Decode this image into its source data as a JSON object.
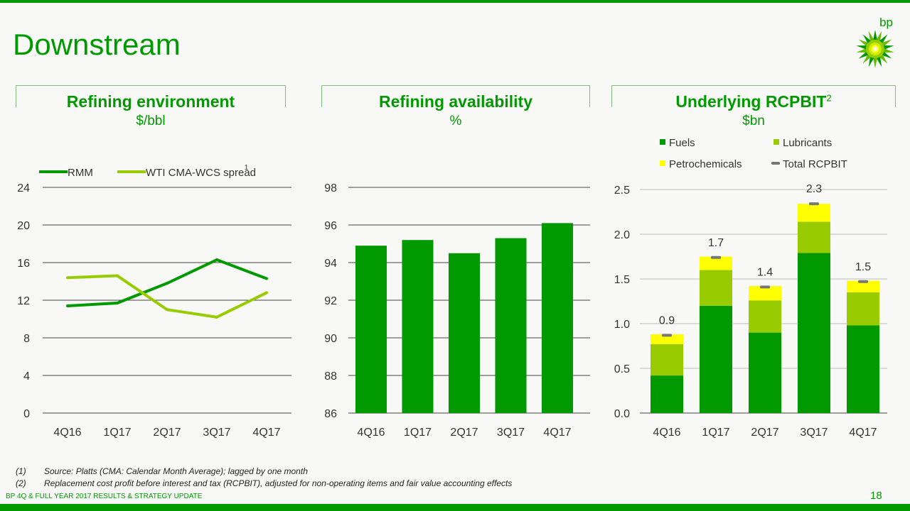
{
  "slide": {
    "title": "Downstream",
    "logo_text": "bp",
    "brand_footer": "BP 4Q & FULL YEAR 2017 RESULTS & STRATEGY UPDATE",
    "page_number": "18",
    "footnotes": [
      {
        "num": "(1)",
        "text": "Source: Platts (CMA: Calendar Month Average); lagged by one month"
      },
      {
        "num": "(2)",
        "text": "Replacement cost profit before interest and tax (RCPBIT), adjusted for non-operating items and fair value accounting effects"
      }
    ],
    "colors": {
      "green_dark": "#009900",
      "green_light": "#99cc00",
      "yellow": "#ffff00",
      "grey": "#777777"
    }
  },
  "chart_data": [
    {
      "type": "line",
      "title": "Refining environment",
      "unit": "$/bbl",
      "categories": [
        "4Q16",
        "1Q17",
        "2Q17",
        "3Q17",
        "4Q17"
      ],
      "series": [
        {
          "name": "RMM",
          "superscript": "",
          "values": [
            11.4,
            11.7,
            13.8,
            16.3,
            14.3
          ]
        },
        {
          "name": "WTI CMA-WCS spread",
          "superscript": "1",
          "values": [
            14.4,
            14.6,
            11.0,
            10.2,
            12.8
          ]
        }
      ],
      "ylim": [
        0,
        24
      ],
      "yticks": [
        0,
        4,
        8,
        12,
        16,
        20,
        24
      ],
      "legend": "top-left"
    },
    {
      "type": "bar",
      "title": "Refining availability",
      "unit": "%",
      "categories": [
        "4Q16",
        "1Q17",
        "2Q17",
        "3Q17",
        "4Q17"
      ],
      "values": [
        94.9,
        95.2,
        94.5,
        95.3,
        96.1
      ],
      "ylim": [
        86,
        98
      ],
      "yticks": [
        86,
        88,
        90,
        92,
        94,
        96,
        98
      ]
    },
    {
      "type": "bar",
      "stacked": true,
      "title": "Underlying RCPBIT",
      "title_superscript": "2",
      "unit": "$bn",
      "categories": [
        "4Q16",
        "1Q17",
        "2Q17",
        "3Q17",
        "4Q17"
      ],
      "series": [
        {
          "name": "Fuels",
          "values": [
            0.42,
            1.2,
            0.9,
            1.79,
            0.98
          ]
        },
        {
          "name": "Lubricants",
          "values": [
            0.35,
            0.4,
            0.36,
            0.35,
            0.37
          ]
        },
        {
          "name": "Petrochemicals",
          "values": [
            0.11,
            0.15,
            0.16,
            0.2,
            0.13
          ]
        }
      ],
      "total_series_name": "Total RCPBIT",
      "totals": [
        0.87,
        1.74,
        1.41,
        2.34,
        1.47
      ],
      "total_labels": [
        "0.9",
        "1.7",
        "1.4",
        "2.3",
        "1.5"
      ],
      "ylim": [
        0,
        2.5
      ],
      "yticks": [
        "0.0",
        "0.5",
        "1.0",
        "1.5",
        "2.0",
        "2.5"
      ],
      "legend": "top"
    }
  ]
}
